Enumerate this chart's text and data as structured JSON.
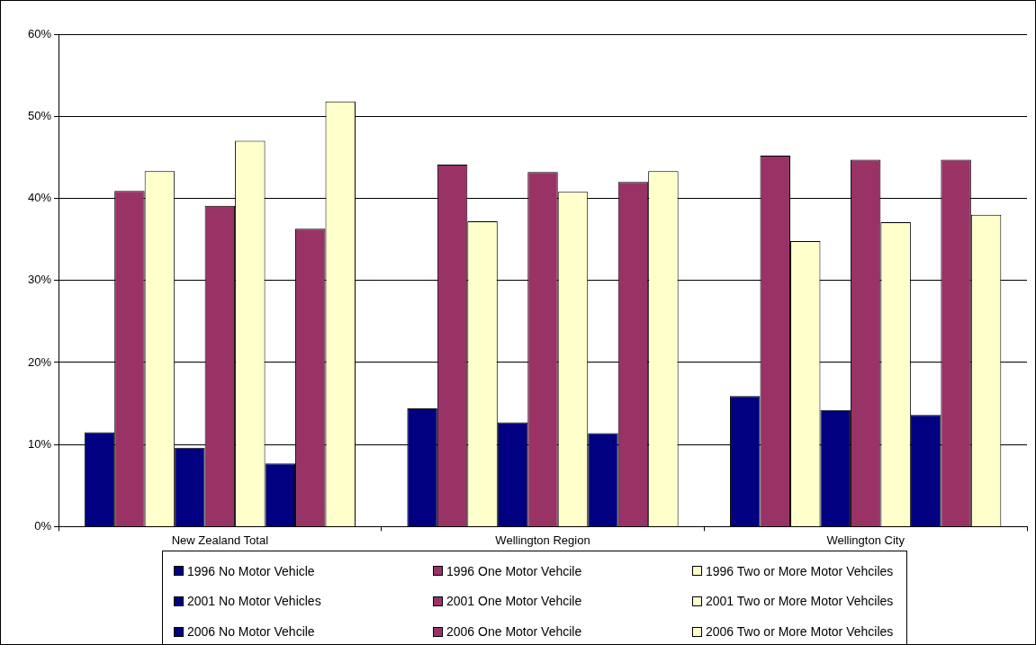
{
  "chart_data": {
    "type": "bar",
    "categories": [
      "New Zealand Total",
      "Wellington Region",
      "Wellington City"
    ],
    "series": [
      {
        "name": "1996 No Motor Vehicle",
        "color": "#000080",
        "values": [
          11.5,
          14.4,
          15.9
        ]
      },
      {
        "name": "1996 One Motor Vehcile",
        "color": "#993366",
        "values": [
          40.9,
          44.1,
          45.2
        ]
      },
      {
        "name": "1996 Two or More Motor Vehciles",
        "color": "#ffffcc",
        "values": [
          43.3,
          37.2,
          34.8
        ]
      },
      {
        "name": "2001 No Motor Vehicles",
        "color": "#000080",
        "values": [
          9.6,
          12.7,
          14.2
        ]
      },
      {
        "name": "2001 One Motor Vehcile",
        "color": "#993366",
        "values": [
          39.1,
          43.2,
          44.7
        ]
      },
      {
        "name": "2001 Two or More Motor Vehciles",
        "color": "#ffffcc",
        "values": [
          47.0,
          40.8,
          37.1
        ]
      },
      {
        "name": "2006 No Motor Vehcile",
        "color": "#000080",
        "values": [
          7.7,
          11.4,
          13.6
        ]
      },
      {
        "name": "2006 One Motor Vehcile",
        "color": "#993366",
        "values": [
          36.3,
          42.0,
          44.7
        ]
      },
      {
        "name": "2006 Two or More Motor Vehciles",
        "color": "#ffffcc",
        "values": [
          51.8,
          43.3,
          38.0
        ]
      }
    ],
    "ylim": [
      0,
      60
    ],
    "yticks": [
      {
        "value": 0,
        "label": "0%"
      },
      {
        "value": 10,
        "label": "10%"
      },
      {
        "value": 20,
        "label": "20%"
      },
      {
        "value": 30,
        "label": "30%"
      },
      {
        "value": 40,
        "label": "40%"
      },
      {
        "value": 50,
        "label": "50%"
      },
      {
        "value": 60,
        "label": "60%"
      }
    ],
    "grid": "y",
    "legend": "bottom"
  }
}
